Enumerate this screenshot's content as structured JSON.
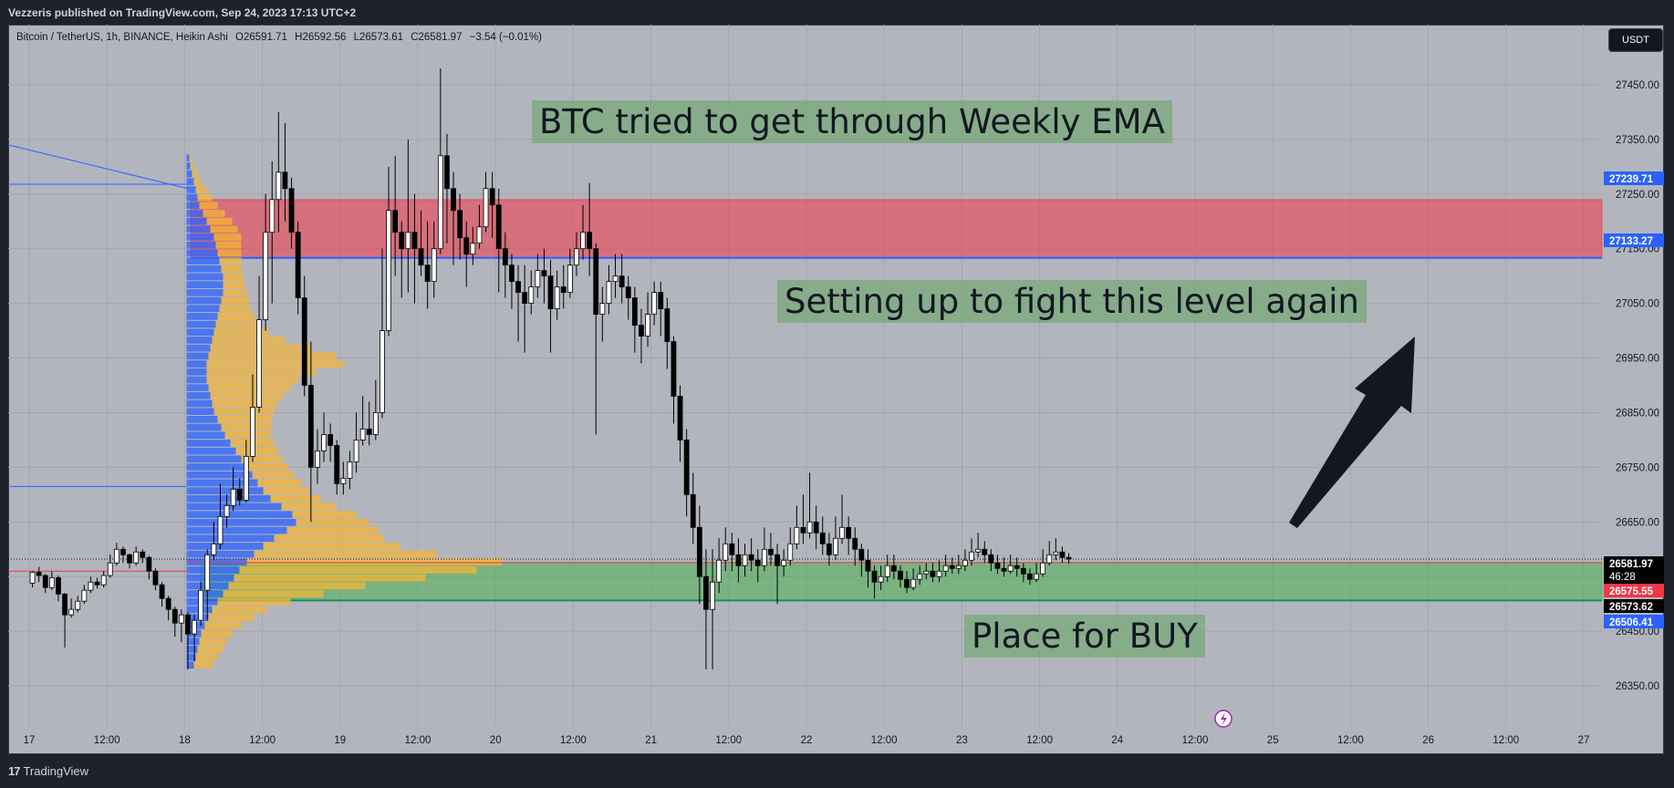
{
  "header": {
    "published": "Vezzeris published on TradingView.com, Sep 24, 2023 17:13 UTC+2"
  },
  "legend": {
    "symbol": "Bitcoin / TetherUS, 1h, BINANCE, Heikin Ashi",
    "open": "O26591.71",
    "high": "H26592.56",
    "low": "L26573.61",
    "close": "C26581.97",
    "change": "−3.54 (−0.01%)"
  },
  "currency_button": "USDT",
  "footer": {
    "brand": "TradingView",
    "logo_mark": "17"
  },
  "colors": {
    "background": "#b2b5be",
    "bull_candle": "#ffffff",
    "bear_candle": "#000000",
    "resistance_zone": "#f23645",
    "support_zone": "#4caf50",
    "volume_profile_up": "#2962ff",
    "volume_profile_down": "#f5b533",
    "arrow": "#131722",
    "accent": "#2962ff"
  },
  "annotations": [
    {
      "id": "ema-note",
      "text": "BTC tried to get through Weekly EMA"
    },
    {
      "id": "fight-note",
      "text": "Setting up to fight this level again"
    },
    {
      "id": "buy-note",
      "text": "Place for BUY"
    }
  ],
  "chart_data": {
    "type": "candlestick",
    "title": "Bitcoin / TetherUS, 1h, BINANCE, Heikin Ashi",
    "ylim": [
      26275,
      27560
    ],
    "y_ticks": [
      26350,
      26450,
      26550,
      26650,
      26750,
      26850,
      26950,
      27050,
      27150,
      27250,
      27350,
      27450
    ],
    "y_tick_labels": [
      "26350.00",
      "26450.00",
      "26550.00",
      "26650.00",
      "26750.00",
      "26850.00",
      "26950.00",
      "27050.00",
      "27150.00",
      "27250.00",
      "27350.00",
      "27450.00"
    ],
    "x_ticks": [
      {
        "label": "17",
        "hour": 0
      },
      {
        "label": "12:00",
        "hour": 12
      },
      {
        "label": "18",
        "hour": 24
      },
      {
        "label": "12:00",
        "hour": 36
      },
      {
        "label": "19",
        "hour": 48
      },
      {
        "label": "12:00",
        "hour": 60
      },
      {
        "label": "20",
        "hour": 72
      },
      {
        "label": "12:00",
        "hour": 84
      },
      {
        "label": "21",
        "hour": 96
      },
      {
        "label": "12:00",
        "hour": 108
      },
      {
        "label": "22",
        "hour": 120
      },
      {
        "label": "12:00",
        "hour": 132
      },
      {
        "label": "23",
        "hour": 144
      },
      {
        "label": "12:00",
        "hour": 156
      },
      {
        "label": "24",
        "hour": 168
      },
      {
        "label": "12:00",
        "hour": 180
      },
      {
        "label": "25",
        "hour": 192
      },
      {
        "label": "12:00",
        "hour": 204
      },
      {
        "label": "26",
        "hour": 216
      },
      {
        "label": "12:00",
        "hour": 228
      },
      {
        "label": "27",
        "hour": 240
      }
    ],
    "zones": [
      {
        "name": "resistance",
        "top": 27239.71,
        "bottom": 27133.27,
        "start_hour": 25
      },
      {
        "name": "support",
        "top": 26575.55,
        "bottom": 26506.41,
        "start_hour": 26.5
      }
    ],
    "price_labels": [
      {
        "value": 27239.71,
        "text": "27239.71",
        "color": "#2962ff"
      },
      {
        "value": 27133.27,
        "text": "27133.27",
        "color": "#2962ff"
      },
      {
        "value": 26581.97,
        "text": "26581.97",
        "color": "#000000",
        "subtext": "46:28"
      },
      {
        "value": 26575.55,
        "text": "26575.55",
        "color": "#f23645"
      },
      {
        "value": 26573.62,
        "text": "26573.62",
        "color": "#000000"
      },
      {
        "value": 26506.41,
        "text": "26506.41",
        "color": "#2962ff"
      }
    ],
    "candles": [
      [
        26538,
        26558,
        26560,
        26530
      ],
      [
        26558,
        26552,
        26568,
        26540
      ],
      [
        26552,
        26530,
        26555,
        26520
      ],
      [
        26530,
        26548,
        26560,
        26525
      ],
      [
        26548,
        26518,
        26552,
        26505
      ],
      [
        26518,
        26480,
        26520,
        26420
      ],
      [
        26480,
        26490,
        26510,
        26475
      ],
      [
        26490,
        26505,
        26515,
        26485
      ],
      [
        26505,
        26525,
        26535,
        26500
      ],
      [
        26525,
        26540,
        26550,
        26520
      ],
      [
        26540,
        26535,
        26548,
        26528
      ],
      [
        26535,
        26552,
        26560,
        26530
      ],
      [
        26552,
        26575,
        26590,
        26548
      ],
      [
        26575,
        26600,
        26612,
        26570
      ],
      [
        26600,
        26590,
        26605,
        26575
      ],
      [
        26590,
        26575,
        26592,
        26565
      ],
      [
        26575,
        26595,
        26605,
        26570
      ],
      [
        26595,
        26585,
        26600,
        26575
      ],
      [
        26585,
        26560,
        26588,
        26545
      ],
      [
        26560,
        26535,
        26565,
        26525
      ],
      [
        26535,
        26510,
        26540,
        26495
      ],
      [
        26510,
        26490,
        26515,
        26470
      ],
      [
        26490,
        26465,
        26495,
        26440
      ],
      [
        26465,
        26480,
        26490,
        26430
      ],
      [
        26480,
        26445,
        26485,
        26380
      ],
      [
        26445,
        26470,
        26480,
        26395
      ],
      [
        26470,
        26525,
        26540,
        26460
      ],
      [
        26525,
        26590,
        26600,
        26470
      ],
      [
        26590,
        26610,
        26650,
        26580
      ],
      [
        26610,
        26660,
        26720,
        26600
      ],
      [
        26660,
        26680,
        26700,
        26640
      ],
      [
        26680,
        26710,
        26750,
        26670
      ],
      [
        26710,
        26690,
        26730,
        26680
      ],
      [
        26690,
        26770,
        26800,
        26685
      ],
      [
        26770,
        26860,
        26920,
        26760
      ],
      [
        26860,
        27020,
        27100,
        26850
      ],
      [
        27020,
        27180,
        27250,
        27000
      ],
      [
        27180,
        27240,
        27310,
        27050
      ],
      [
        27240,
        27290,
        27400,
        27180
      ],
      [
        27290,
        27260,
        27380,
        27200
      ],
      [
        27260,
        27180,
        27280,
        27150
      ],
      [
        27180,
        27060,
        27200,
        27030
      ],
      [
        27060,
        26900,
        27100,
        26880
      ],
      [
        26900,
        26750,
        26980,
        26650
      ],
      [
        26750,
        26780,
        26820,
        26720
      ],
      [
        26780,
        26810,
        26850,
        26760
      ],
      [
        26810,
        26790,
        26830,
        26760
      ],
      [
        26790,
        26720,
        26800,
        26700
      ],
      [
        26720,
        26730,
        26760,
        26700
      ],
      [
        26730,
        26760,
        26780,
        26710
      ],
      [
        26760,
        26800,
        26850,
        26740
      ],
      [
        26800,
        26820,
        26880,
        26790
      ],
      [
        26820,
        26810,
        26870,
        26790
      ],
      [
        26810,
        26850,
        26910,
        26800
      ],
      [
        26850,
        27000,
        27150,
        26840
      ],
      [
        27000,
        27220,
        27300,
        26990
      ],
      [
        27220,
        27180,
        27320,
        27100
      ],
      [
        27180,
        27150,
        27200,
        27060
      ],
      [
        27150,
        27180,
        27350,
        27070
      ],
      [
        27180,
        27150,
        27250,
        27050
      ],
      [
        27150,
        27120,
        27220,
        27100
      ],
      [
        27120,
        27090,
        27200,
        27040
      ],
      [
        27090,
        27150,
        27200,
        27060
      ],
      [
        27150,
        27320,
        27480,
        27140
      ],
      [
        27320,
        27260,
        27360,
        27160
      ],
      [
        27260,
        27220,
        27290,
        27120
      ],
      [
        27220,
        27170,
        27250,
        27130
      ],
      [
        27170,
        27140,
        27200,
        27080
      ],
      [
        27140,
        27160,
        27190,
        27120
      ],
      [
        27160,
        27190,
        27230,
        27150
      ],
      [
        27190,
        27260,
        27290,
        27180
      ],
      [
        27260,
        27230,
        27290,
        27170
      ],
      [
        27230,
        27150,
        27260,
        27070
      ],
      [
        27150,
        27120,
        27180,
        27060
      ],
      [
        27120,
        27090,
        27140,
        27040
      ],
      [
        27090,
        27070,
        27120,
        26980
      ],
      [
        27070,
        27050,
        27120,
        26960
      ],
      [
        27050,
        27080,
        27110,
        27030
      ],
      [
        27080,
        27110,
        27140,
        27060
      ],
      [
        27110,
        27100,
        27150,
        27050
      ],
      [
        27100,
        27040,
        27130,
        26960
      ],
      [
        27040,
        27080,
        27110,
        27020
      ],
      [
        27080,
        27070,
        27120,
        27040
      ],
      [
        27070,
        27120,
        27150,
        27060
      ],
      [
        27120,
        27150,
        27180,
        27100
      ],
      [
        27150,
        27180,
        27230,
        27130
      ],
      [
        27180,
        27150,
        27270,
        27100
      ],
      [
        27150,
        27030,
        27160,
        26810
      ],
      [
        27030,
        27050,
        27080,
        26980
      ],
      [
        27050,
        27090,
        27120,
        27030
      ],
      [
        27090,
        27100,
        27140,
        27060
      ],
      [
        27100,
        27080,
        27140,
        27050
      ],
      [
        27080,
        27060,
        27100,
        27020
      ],
      [
        27060,
        27010,
        27080,
        26960
      ],
      [
        27010,
        26990,
        27040,
        26940
      ],
      [
        26990,
        27030,
        27070,
        26970
      ],
      [
        27030,
        27070,
        27090,
        27010
      ],
      [
        27070,
        27040,
        27090,
        26990
      ],
      [
        27040,
        26980,
        27060,
        26930
      ],
      [
        26980,
        26880,
        26990,
        26830
      ],
      [
        26880,
        26800,
        26900,
        26760
      ],
      [
        26800,
        26700,
        26820,
        26660
      ],
      [
        26700,
        26640,
        26740,
        26610
      ],
      [
        26640,
        26550,
        26680,
        26500
      ],
      [
        26550,
        26490,
        26600,
        26380
      ],
      [
        26490,
        26540,
        26600,
        26380
      ],
      [
        26540,
        26580,
        26620,
        26520
      ],
      [
        26580,
        26610,
        26640,
        26560
      ],
      [
        26610,
        26590,
        26630,
        26560
      ],
      [
        26590,
        26570,
        26620,
        26540
      ],
      [
        26570,
        26590,
        26610,
        26550
      ],
      [
        26590,
        26580,
        26620,
        26560
      ],
      [
        26580,
        26570,
        26600,
        26540
      ],
      [
        26570,
        26600,
        26640,
        26560
      ],
      [
        26600,
        26590,
        26630,
        26570
      ],
      [
        26590,
        26570,
        26610,
        26500
      ],
      [
        26570,
        26580,
        26600,
        26550
      ],
      [
        26580,
        26610,
        26640,
        26570
      ],
      [
        26610,
        26640,
        26680,
        26600
      ],
      [
        26640,
        26630,
        26700,
        26610
      ],
      [
        26630,
        26650,
        26740,
        26620
      ],
      [
        26650,
        26630,
        26680,
        26600
      ],
      [
        26630,
        26610,
        26660,
        26590
      ],
      [
        26610,
        26590,
        26630,
        26570
      ],
      [
        26590,
        26620,
        26660,
        26580
      ],
      [
        26620,
        26640,
        26700,
        26610
      ],
      [
        26640,
        26620,
        26660,
        26590
      ],
      [
        26620,
        26600,
        26640,
        26570
      ],
      [
        26600,
        26580,
        26610,
        26550
      ],
      [
        26580,
        26560,
        26600,
        26530
      ],
      [
        26560,
        26540,
        26570,
        26510
      ],
      [
        26540,
        26550,
        26570,
        26525
      ],
      [
        26550,
        26570,
        26590,
        26540
      ],
      [
        26570,
        26560,
        26590,
        26545
      ],
      [
        26560,
        26545,
        26570,
        26530
      ],
      [
        26545,
        26530,
        26560,
        26520
      ],
      [
        26530,
        26545,
        26565,
        26525
      ],
      [
        26545,
        26555,
        26570,
        26535
      ],
      [
        26555,
        26560,
        26575,
        26545
      ],
      [
        26560,
        26550,
        26575,
        26540
      ],
      [
        26550,
        26560,
        26580,
        26540
      ],
      [
        26560,
        26570,
        26590,
        26550
      ],
      [
        26570,
        26565,
        26585,
        26555
      ],
      [
        26565,
        26570,
        26590,
        26555
      ],
      [
        26570,
        26580,
        26600,
        26560
      ],
      [
        26580,
        26595,
        26620,
        26570
      ],
      [
        26595,
        26600,
        26630,
        26585
      ],
      [
        26600,
        26590,
        26615,
        26575
      ],
      [
        26590,
        26575,
        26600,
        26560
      ],
      [
        26575,
        26565,
        26590,
        26555
      ],
      [
        26565,
        26560,
        26585,
        26550
      ],
      [
        26560,
        26570,
        26590,
        26555
      ],
      [
        26570,
        26565,
        26585,
        26550
      ],
      [
        26565,
        26555,
        26575,
        26540
      ],
      [
        26555,
        26545,
        26565,
        26535
      ],
      [
        26545,
        26555,
        26575,
        26540
      ],
      [
        26555,
        26575,
        26600,
        26550
      ],
      [
        26575,
        26590,
        26615,
        26570
      ],
      [
        26590,
        26595,
        26620,
        26580
      ],
      [
        26595,
        26585,
        26605,
        26575
      ],
      [
        26585,
        26582,
        26593,
        26574
      ]
    ],
    "volume_profile": {
      "levels_from": 26380,
      "level_step": 14.5,
      "up": [
        8,
        10,
        12,
        14,
        16,
        20,
        24,
        28,
        34,
        40,
        46,
        52,
        58,
        66,
        74,
        84,
        96,
        110,
        120,
        116,
        104,
        92,
        84,
        78,
        72,
        66,
        60,
        54,
        48,
        42,
        38,
        34,
        30,
        28,
        26,
        24,
        22,
        22,
        22,
        24,
        26,
        28,
        30,
        32,
        34,
        36,
        38,
        40,
        40,
        40,
        38,
        36,
        34,
        32,
        30,
        26,
        22,
        18,
        14,
        12,
        10,
        8,
        6,
        4,
        3
      ],
      "down": [
        20,
        24,
        28,
        30,
        34,
        40,
        50,
        60,
        80,
        110,
        150,
        210,
        260,
        280,
        200,
        150,
        120,
        100,
        80,
        70,
        60,
        55,
        50,
        48,
        46,
        45,
        45,
        46,
        48,
        50,
        55,
        60,
        66,
        72,
        80,
        90,
        100,
        120,
        150,
        140,
        110,
        80,
        60,
        48,
        40,
        34,
        30,
        26,
        24,
        22,
        22,
        24,
        26,
        28,
        30,
        30,
        28,
        24,
        20,
        16,
        12,
        8,
        6,
        4,
        2
      ]
    }
  }
}
